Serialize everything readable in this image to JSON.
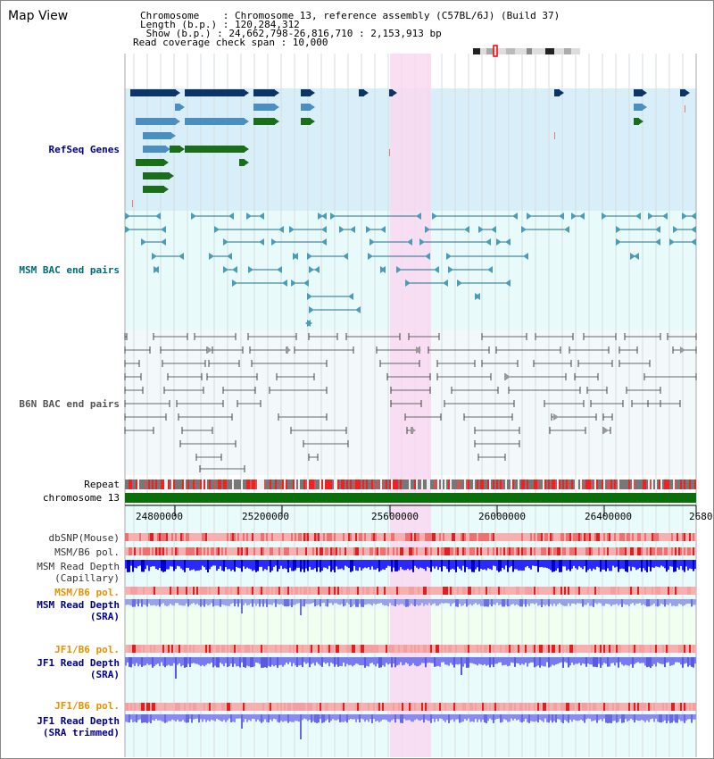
{
  "title": "Map View",
  "info": {
    "row1": "Chromosome    : Chromosome 13, reference assembly (C57BL/6J) (Build 37)",
    "row2": "Length (b.p.) : 120,284,312",
    "row3": " Show (b.p.) : 24,662,798-26,816,710 : 2,153,913 bp",
    "row4": "Read coverage check span : 10,000"
  },
  "tracks": {
    "refseq": "RefSeq Genes",
    "msm_bac": "MSM BAC end pairs",
    "b6n_bac": "B6N BAC end pairs",
    "repeat": "Repeat",
    "chromosome": "chromosome 13",
    "dbsnp": "dbSNP(Mouse)",
    "msm_b6_pol1": "MSM/B6 pol.",
    "msm_read_depth_cap": "MSM Read Depth",
    "capillary": "(Capillary)",
    "msm_b6_pol2": "MSM/B6 pol.",
    "msm_read_depth_sra": "MSM Read Depth",
    "sra": "(SRA)",
    "jf1_b6_pol1": "JF1/B6 pol.",
    "jf1_read_depth_sra": "JF1 Read Depth",
    "sra2": "(SRA)",
    "jf1_b6_pol2": "JF1/B6 pol.",
    "jf1_read_depth_trim": "JF1 Read Depth",
    "sra_trimmed": "(SRA trimmed)"
  },
  "axis_ticks": [
    "24800000",
    "25200000",
    "25600000",
    "26000000",
    "26400000",
    "2680"
  ],
  "colors": {
    "refseq_bg": "#d8eef9",
    "bac_bg": "#e8fafa",
    "highlight": "#f9d8f0",
    "dark_blue": "#0b3566",
    "mid_blue": "#4a8fc0",
    "green": "#1a6e1a",
    "bac_line": "#1f6e8a",
    "b6n_line": "#666666",
    "label_blue": "#00008b",
    "label_teal": "#006a7a",
    "label_orange": "#e69100",
    "chrom_green": "#0a6e0a"
  }
}
